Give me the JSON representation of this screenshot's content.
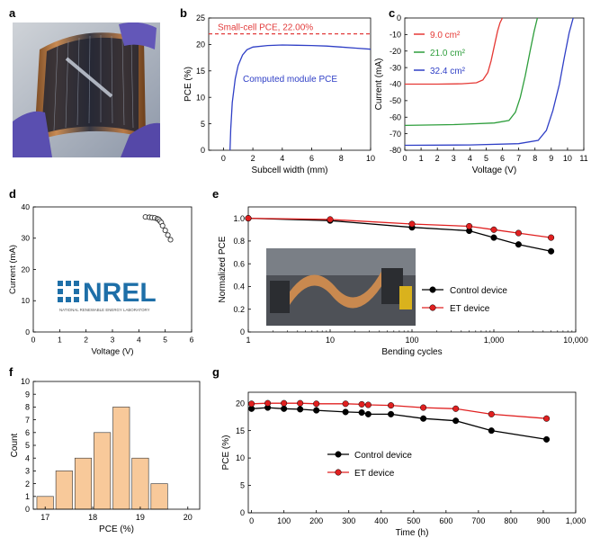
{
  "panel_labels": {
    "a": "a",
    "b": "b",
    "c": "c",
    "d": "d",
    "e": "e",
    "f": "f",
    "g": "g"
  },
  "nrel_logo": {
    "text": "NREL",
    "subtitle": "NATIONAL RENEWABLE ENERGY LABORATORY",
    "color": "#1e6fa8"
  },
  "chart_data": [
    {
      "id": "b",
      "type": "line",
      "xlabel": "Subcell width (mm)",
      "ylabel": "PCE (%)",
      "xlim": [
        -1,
        10
      ],
      "ylim": [
        0,
        25
      ],
      "xticks": [
        0,
        2,
        4,
        6,
        8,
        10
      ],
      "yticks": [
        0,
        5,
        10,
        15,
        20,
        25
      ],
      "reference_line": {
        "label": "Small-cell PCE, 22.00%",
        "value": 22.0,
        "color": "#e23b3b"
      },
      "series": [
        {
          "name": "Computed module PCE",
          "color": "#2f3fc6",
          "x": [
            0.45,
            0.5,
            0.6,
            0.8,
            1.0,
            1.3,
            1.6,
            2.0,
            3.0,
            4.0,
            5.0,
            6.0,
            7.0,
            8.0,
            9.0,
            10.0
          ],
          "y": [
            0,
            4,
            9,
            13.5,
            16,
            18,
            19,
            19.5,
            19.8,
            19.9,
            19.85,
            19.8,
            19.7,
            19.5,
            19.3,
            19.1
          ]
        }
      ]
    },
    {
      "id": "c",
      "type": "line",
      "xlabel": "Voltage (V)",
      "ylabel": "Current (mA)",
      "xlim": [
        0,
        11
      ],
      "ylim": [
        -80,
        0
      ],
      "xticks": [
        0,
        1,
        2,
        3,
        4,
        5,
        6,
        7,
        8,
        9,
        10,
        11
      ],
      "yticks": [
        0,
        -10,
        -20,
        -30,
        -40,
        -50,
        -60,
        -70,
        -80
      ],
      "series": [
        {
          "name": "9.0 cm²",
          "color": "#e53935",
          "x": [
            0,
            2,
            3.5,
            4.4,
            4.8,
            5.1,
            5.3,
            5.5,
            5.7,
            5.85,
            6.0
          ],
          "y": [
            -40,
            -40,
            -39.8,
            -39.2,
            -37.5,
            -33,
            -26,
            -17,
            -8,
            -3,
            0
          ]
        },
        {
          "name": "21.0 cm²",
          "color": "#2e9e3c",
          "x": [
            0,
            3,
            5.5,
            6.4,
            6.8,
            7.1,
            7.4,
            7.7,
            7.95,
            8.15
          ],
          "y": [
            -65,
            -64.5,
            -63.5,
            -62,
            -57,
            -48,
            -35,
            -20,
            -8,
            0
          ]
        },
        {
          "name": "32.4 cm²",
          "color": "#2f3fc6",
          "x": [
            0,
            4,
            7,
            8.2,
            8.7,
            9.1,
            9.5,
            9.8,
            10.1,
            10.35
          ],
          "y": [
            -77,
            -76.8,
            -76,
            -74,
            -68,
            -56,
            -40,
            -24,
            -9,
            0
          ]
        }
      ]
    },
    {
      "id": "d",
      "type": "scatter",
      "xlabel": "Voltage (V)",
      "ylabel": "Current (mA)",
      "xlim": [
        0,
        6
      ],
      "ylim": [
        0,
        40
      ],
      "xticks": [
        0,
        1,
        2,
        3,
        4,
        5,
        6
      ],
      "yticks": [
        0,
        10,
        20,
        30,
        40
      ],
      "series": [
        {
          "name": "",
          "marker": "open-circle",
          "x": [
            4.25,
            4.4,
            4.5,
            4.6,
            4.7,
            4.75,
            4.8,
            4.85,
            4.9,
            5.0,
            5.1,
            5.2
          ],
          "y": [
            36.8,
            36.7,
            36.6,
            36.5,
            36.2,
            36.0,
            35.5,
            35.0,
            34.0,
            32.5,
            31.0,
            29.5
          ]
        }
      ]
    },
    {
      "id": "e",
      "type": "line",
      "xscale": "log",
      "xlabel": "Bending cycles",
      "ylabel": "Normalized PCE",
      "xlim": [
        1,
        10000
      ],
      "ylim": [
        0,
        1.1
      ],
      "xticks": [
        1,
        10,
        100,
        1000,
        10000
      ],
      "xticklabels": [
        "1",
        "10",
        "100",
        "1,000",
        "10,000"
      ],
      "yticks": [
        0,
        0.2,
        0.4,
        0.6,
        0.8,
        1.0
      ],
      "yticklabels": [
        "0",
        "0.2",
        "0.4",
        "0.6",
        "0.8",
        "1.0"
      ],
      "legend": "center-right",
      "series": [
        {
          "name": "Control device",
          "color": "#000000",
          "x": [
            1,
            10,
            100,
            500,
            1000,
            2000,
            5000
          ],
          "y": [
            1.0,
            0.98,
            0.92,
            0.89,
            0.83,
            0.77,
            0.71
          ]
        },
        {
          "name": "ET device",
          "color": "#e02020",
          "x": [
            1,
            10,
            100,
            500,
            1000,
            2000,
            5000
          ],
          "y": [
            1.0,
            0.99,
            0.95,
            0.93,
            0.9,
            0.87,
            0.83
          ]
        }
      ]
    },
    {
      "id": "f",
      "type": "bar",
      "xlabel": "PCE (%)",
      "ylabel": "Count",
      "xlim": [
        16.75,
        20.25
      ],
      "ylim": [
        0,
        10
      ],
      "xticks": [
        17,
        18,
        19,
        20
      ],
      "yticks": [
        0,
        1,
        2,
        3,
        4,
        5,
        6,
        7,
        8,
        9,
        10
      ],
      "bar_color": "#f8c99a",
      "bin_width": 0.35,
      "bin_centers": [
        17.0,
        17.4,
        17.8,
        18.2,
        18.6,
        19.0,
        19.4,
        19.8
      ],
      "values": [
        1,
        3,
        4,
        6,
        8,
        4,
        2,
        0
      ]
    },
    {
      "id": "g",
      "type": "line",
      "xlabel": "Time (h)",
      "ylabel": "PCE (%)",
      "xlim": [
        -10,
        1000
      ],
      "ylim": [
        0,
        22
      ],
      "xticks": [
        0,
        100,
        200,
        300,
        400,
        500,
        600,
        700,
        800,
        900,
        1000
      ],
      "xticklabels": [
        "0",
        "100",
        "200",
        "300",
        "400",
        "500",
        "600",
        "700",
        "800",
        "900",
        "1,000"
      ],
      "yticks": [
        0,
        5,
        10,
        15,
        20
      ],
      "legend": "center",
      "series": [
        {
          "name": "Control device",
          "color": "#000000",
          "x": [
            0,
            50,
            100,
            150,
            200,
            290,
            340,
            360,
            430,
            530,
            630,
            740,
            910
          ],
          "y": [
            19.0,
            19.2,
            19.0,
            18.9,
            18.7,
            18.4,
            18.3,
            18.0,
            18.0,
            17.2,
            16.8,
            15.0,
            13.4
          ]
        },
        {
          "name": "ET device",
          "color": "#e02020",
          "x": [
            0,
            50,
            100,
            150,
            200,
            290,
            340,
            360,
            430,
            530,
            630,
            740,
            910
          ],
          "y": [
            19.9,
            20.0,
            20.0,
            20.0,
            19.9,
            19.9,
            19.8,
            19.7,
            19.6,
            19.2,
            19.0,
            18.0,
            17.2
          ]
        }
      ]
    }
  ]
}
